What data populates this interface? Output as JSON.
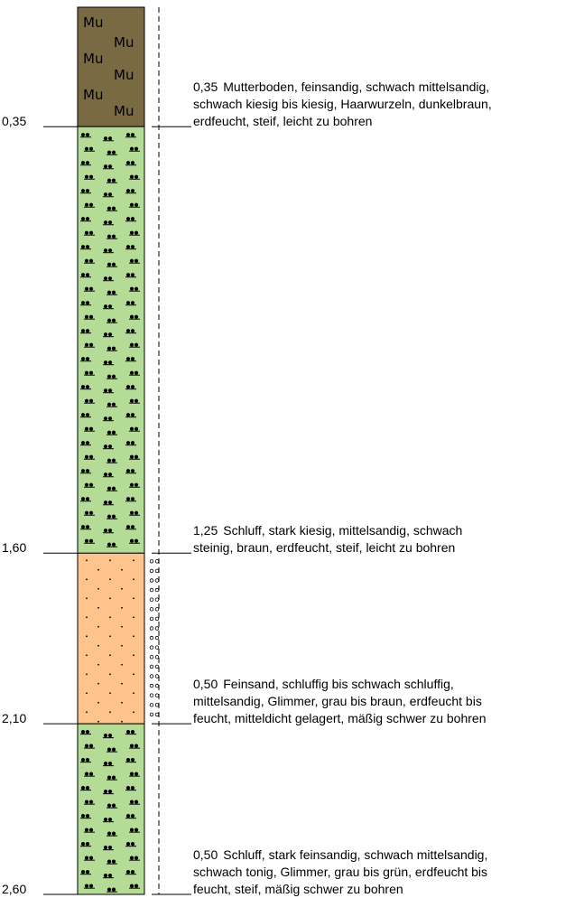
{
  "layers": [
    {
      "top": 0.0,
      "bottom": 0.35,
      "depth_label": "0,35",
      "thickness_label": "0,35",
      "description_lines": [
        "Mutterboden, feinsandig, schwach mittelsandig,",
        "schwach kiesig bis kiesig, Haarwurzeln, dunkelbraun,",
        "erdfeucht, steif, leicht zu bohren"
      ],
      "pattern": "mutterboden",
      "symbol": "Mu",
      "fill": "#7A6A44"
    },
    {
      "top": 0.35,
      "bottom": 1.6,
      "depth_label": "1,60",
      "thickness_label": "1,25",
      "description_lines": [
        "Schluff, stark kiesig, mittelsandig, schwach",
        "steinig, braun, erdfeucht, steif, leicht zu bohren"
      ],
      "pattern": "schluff",
      "fill": "#B4DC96"
    },
    {
      "top": 1.6,
      "bottom": 2.1,
      "depth_label": "2,10",
      "thickness_label": "0,50",
      "description_lines": [
        "Feinsand, schluffig bis schwach schluffig,",
        "mittelsandig, Glimmer, grau bis braun, erdfeucht bis",
        "feucht, mitteldicht gelagert, mäßig schwer zu bohren"
      ],
      "pattern": "feinsand",
      "fill": "#FFC48C",
      "side_marker": "circles"
    },
    {
      "top": 2.1,
      "bottom": 2.6,
      "depth_label": "2,60",
      "thickness_label": "0,50",
      "description_lines": [
        "Schluff, stark feinsandig, schwach mittelsandig,",
        "schwach tonig, Glimmer, grau bis grün, erdfeucht bis",
        "feucht, steif, mäßig schwer zu bohren"
      ],
      "pattern": "schluff",
      "fill": "#B4DC96"
    }
  ]
}
